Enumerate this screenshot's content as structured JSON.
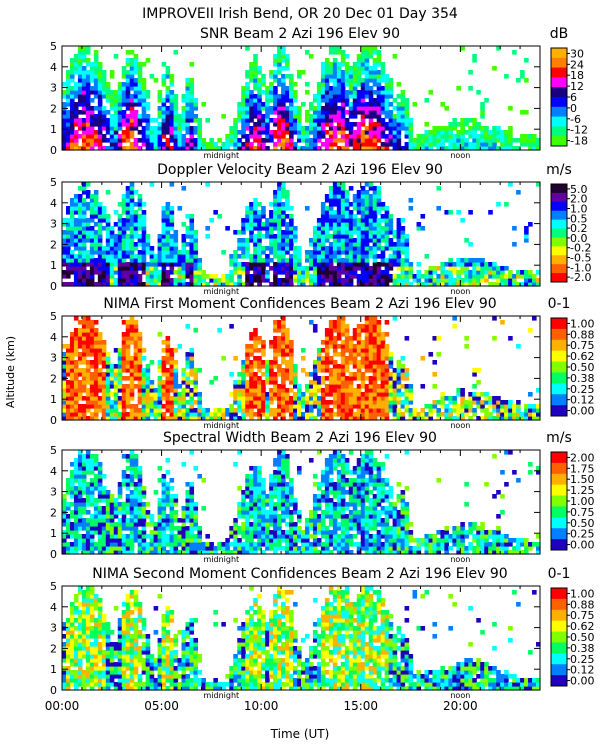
{
  "figure_title": "IMPROVEII  Irish Bend, OR  20 Dec 01 Day 354",
  "y_axis_label": "Altitude (km)",
  "x_axis_label": "Time (UT)",
  "x_tick_labels": [
    "00:00",
    "05:00",
    "10:00",
    "15:00",
    "20:00"
  ],
  "y_tick_labels": [
    "0",
    "1",
    "2",
    "3",
    "4",
    "5"
  ],
  "marker_labels": {
    "midnight": "midnight",
    "noon": "noon"
  },
  "chart_data": [
    {
      "type": "heatmap",
      "title": "SNR Beam 2 Azi 196 Elev 90",
      "unit": "dB",
      "xlabel": "Time (UT)",
      "ylabel": "Altitude (km)",
      "xlim": [
        0,
        24
      ],
      "ylim": [
        0,
        5
      ],
      "colorbar_ticks": [
        "30",
        "24",
        "18",
        "12",
        "6",
        "0",
        "-6",
        "-12",
        "-18"
      ],
      "colors": [
        "#ffb000",
        "#ff7f00",
        "#ff0000",
        "#ff00ff",
        "#1a0080",
        "#0000ff",
        "#0080ff",
        "#00ffff",
        "#00ff80",
        "#40ff00"
      ]
    },
    {
      "type": "heatmap",
      "title": "Doppler Velocity Beam 2 Azi 196 Elev 90",
      "unit": "m/s",
      "xlabel": "Time (UT)",
      "ylabel": "Altitude (km)",
      "xlim": [
        0,
        24
      ],
      "ylim": [
        0,
        5
      ],
      "colorbar_ticks": [
        "5.0",
        "2.0",
        "1.0",
        "0.5",
        "0.2",
        "0.0",
        "-0.2",
        "-0.5",
        "-1.0",
        "-2.0"
      ],
      "colors": [
        "#200030",
        "#6000a0",
        "#0000ff",
        "#0080ff",
        "#00ffff",
        "#00ff80",
        "#80ff00",
        "#ffff00",
        "#ffb000",
        "#ff6000",
        "#ff0000"
      ]
    },
    {
      "type": "heatmap",
      "title": "NIMA First Moment Confidences Beam 2 Azi 196 Elev 90",
      "unit": "0-1",
      "xlabel": "Time (UT)",
      "ylabel": "Altitude (km)",
      "xlim": [
        0,
        24
      ],
      "ylim": [
        0,
        5
      ],
      "colorbar_ticks": [
        "1.00",
        "0.88",
        "0.75",
        "0.62",
        "0.50",
        "0.38",
        "0.25",
        "0.12",
        "0.00"
      ],
      "colors": [
        "#ff0000",
        "#ff6000",
        "#ffb000",
        "#ffff00",
        "#80ff00",
        "#00ff60",
        "#00ffff",
        "#0080ff",
        "#2000c0"
      ]
    },
    {
      "type": "heatmap",
      "title": "Spectral Width Beam 2 Azi 196 Elev 90",
      "unit": "m/s",
      "xlabel": "Time (UT)",
      "ylabel": "Altitude (km)",
      "xlim": [
        0,
        24
      ],
      "ylim": [
        0,
        5
      ],
      "colorbar_ticks": [
        "2.00",
        "1.75",
        "1.50",
        "1.25",
        "1.00",
        "0.75",
        "0.50",
        "0.25",
        "0.00"
      ],
      "colors": [
        "#ff0000",
        "#ff6000",
        "#ffb000",
        "#ffff00",
        "#80ff00",
        "#00ff60",
        "#00ffff",
        "#0080ff",
        "#2000c0"
      ]
    },
    {
      "type": "heatmap",
      "title": "NIMA Second Moment Confidences Beam 2 Azi 196 Elev 90",
      "unit": "0-1",
      "xlabel": "Time (UT)",
      "ylabel": "Altitude (km)",
      "xlim": [
        0,
        24
      ],
      "ylim": [
        0,
        5
      ],
      "colorbar_ticks": [
        "1.00",
        "0.88",
        "0.75",
        "0.62",
        "0.50",
        "0.38",
        "0.25",
        "0.12",
        "0.00"
      ],
      "colors": [
        "#ff0000",
        "#ff6000",
        "#ffb000",
        "#ffff00",
        "#80ff00",
        "#00ff60",
        "#00ffff",
        "#0080ff",
        "#2000c0"
      ]
    }
  ]
}
